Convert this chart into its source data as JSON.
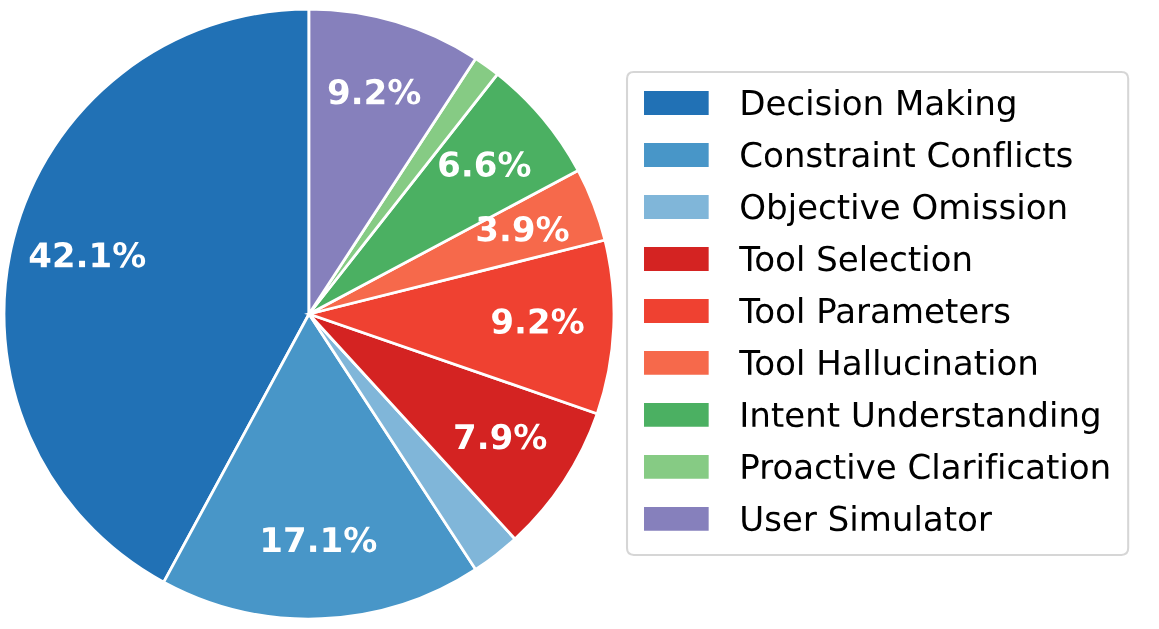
{
  "chart_data": {
    "type": "pie",
    "categories": [
      "Decision Making",
      "Constraint Conflicts",
      "Objective Omission",
      "Tool Selection",
      "Tool Parameters",
      "Tool Hallucination",
      "Intent Understanding",
      "Proactive Clarification",
      "User Simulator"
    ],
    "values": [
      42.1,
      17.1,
      2.6,
      7.9,
      9.2,
      3.9,
      6.6,
      1.4,
      9.2
    ],
    "colors": [
      "#2171b5",
      "#4896c8",
      "#80b6d9",
      "#d42322",
      "#ef4131",
      "#f6694b",
      "#4bb062",
      "#86cb84",
      "#8680bc"
    ],
    "value_labels": [
      "42.1%",
      "17.1%",
      null,
      "7.9%",
      "9.2%",
      "3.9%",
      "6.6%",
      null,
      "9.2%"
    ],
    "legend": "right"
  }
}
